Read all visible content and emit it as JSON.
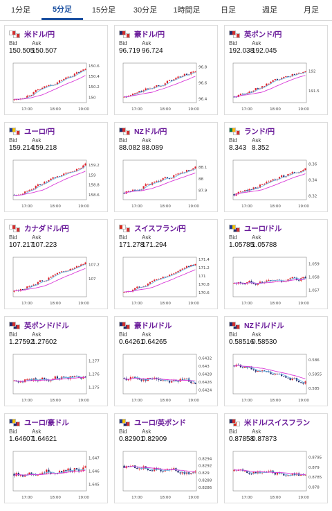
{
  "tabs": [
    {
      "label": "1分足",
      "active": false
    },
    {
      "label": "5分足",
      "active": true
    },
    {
      "label": "15分足",
      "active": false
    },
    {
      "label": "30分足",
      "active": false
    },
    {
      "label": "1時間足",
      "active": false
    },
    {
      "label": "日足",
      "active": false
    },
    {
      "label": "週足",
      "active": false
    },
    {
      "label": "月足",
      "active": false
    }
  ],
  "quote_labels": {
    "bid": "Bid",
    "ask": "Ask"
  },
  "x_ticks": [
    "17:00",
    "18:00",
    "19:00"
  ],
  "colors": {
    "up": "#e0202a",
    "down": "#1f2b6e",
    "ma_short": "#6fb8e6",
    "ma_long": "#d83ad8",
    "accent": "#6a1b9a",
    "tab_active": "#1a4fa0"
  },
  "pairs": [
    {
      "name": "米ドル/円",
      "bid": "150.505",
      "ask": "150.507",
      "flags": [
        [
          "#ffffff",
          "#d22f2f"
        ],
        [
          "#ffffff",
          "#d22f2f"
        ]
      ],
      "chart_data": {
        "type": "candlestick",
        "y_ticks": [
          "150.6",
          "150.4",
          "150.2",
          "150"
        ],
        "ylim": [
          149.9,
          150.65
        ],
        "trend": [
          149.95,
          150.55
        ],
        "vol": 0.05
      }
    },
    {
      "name": "豪ドル/円",
      "bid": "96.719",
      "ask": "96.724",
      "flags": [
        [
          "#1f2b6e",
          "#d22f2f"
        ],
        [
          "#ffffff",
          "#d22f2f"
        ]
      ],
      "chart_data": {
        "type": "candlestick",
        "y_ticks": [
          "96.8",
          "96.6",
          "96.4"
        ],
        "ylim": [
          96.35,
          96.85
        ],
        "trend": [
          96.42,
          96.76
        ],
        "vol": 0.035
      }
    },
    {
      "name": "英ポンド/円",
      "bid": "192.038",
      "ask": "192.045",
      "flags": [
        [
          "#1f2b6e",
          "#d22f2f"
        ],
        [
          "#ffffff",
          "#d22f2f"
        ]
      ],
      "chart_data": {
        "type": "candlestick",
        "y_ticks": [
          "192",
          "191.5"
        ],
        "ylim": [
          191.2,
          192.2
        ],
        "trend": [
          191.35,
          192.06
        ],
        "vol": 0.07
      }
    },
    {
      "name": "ユーロ/円",
      "bid": "159.214",
      "ask": "159.218",
      "flags": [
        [
          "#1f3a93",
          "#f3c300"
        ],
        [
          "#ffffff",
          "#d22f2f"
        ]
      ],
      "chart_data": {
        "type": "candlestick",
        "y_ticks": [
          "159.2",
          "159",
          "158.8",
          "158.6"
        ],
        "ylim": [
          158.5,
          159.3
        ],
        "trend": [
          158.6,
          159.22
        ],
        "vol": 0.05
      }
    },
    {
      "name": "NZドル/円",
      "bid": "88.082",
      "ask": "88.089",
      "flags": [
        [
          "#1f2b6e",
          "#d22f2f"
        ],
        [
          "#ffffff",
          "#d22f2f"
        ]
      ],
      "chart_data": {
        "type": "candlestick",
        "y_ticks": [
          "88.1",
          "88",
          "87.9"
        ],
        "ylim": [
          87.82,
          88.16
        ],
        "trend": [
          87.88,
          88.1
        ],
        "vol": 0.025
      }
    },
    {
      "name": "ランド/円",
      "bid": "8.343",
      "ask": "8.352",
      "flags": [
        [
          "#007a4d",
          "#ffb612"
        ],
        [
          "#ffffff",
          "#d22f2f"
        ]
      ],
      "chart_data": {
        "type": "candlestick",
        "y_ticks": [
          "8.36",
          "8.34",
          "8.32"
        ],
        "ylim": [
          8.315,
          8.365
        ],
        "trend": [
          8.322,
          8.355
        ],
        "vol": 0.004
      }
    },
    {
      "name": "カナダドル/円",
      "bid": "107.217",
      "ask": "107.223",
      "flags": [
        [
          "#ffffff",
          "#d22f2f"
        ],
        [
          "#ffffff",
          "#d22f2f"
        ]
      ],
      "chart_data": {
        "type": "candlestick",
        "y_ticks": [
          "107.2",
          "107"
        ],
        "ylim": [
          106.75,
          107.3
        ],
        "trend": [
          106.82,
          107.24
        ],
        "vol": 0.035
      }
    },
    {
      "name": "スイスフラン/円",
      "bid": "171.278",
      "ask": "171.294",
      "flags": [
        [
          "#d52b1e",
          "#ffffff"
        ],
        [
          "#ffffff",
          "#d22f2f"
        ]
      ],
      "chart_data": {
        "type": "candlestick",
        "y_ticks": [
          "171.4",
          "171.2",
          "171",
          "170.8",
          "170.6"
        ],
        "ylim": [
          170.5,
          171.45
        ],
        "trend": [
          170.6,
          171.32
        ],
        "vol": 0.06
      }
    },
    {
      "name": "ユーロ/ドル",
      "bid": "1.05785",
      "ask": "1.05788",
      "flags": [
        [
          "#1f3a93",
          "#f3c300"
        ],
        [
          "#1f2b6e",
          "#d22f2f"
        ]
      ],
      "chart_data": {
        "type": "candlestick",
        "y_ticks": [
          "1.059",
          "1.058",
          "1.057"
        ],
        "ylim": [
          1.0565,
          1.0595
        ],
        "trend": [
          1.0575,
          1.0579
        ],
        "vol": 0.0003
      }
    },
    {
      "name": "英ポンド/ドル",
      "bid": "1.27592",
      "ask": "1.27602",
      "flags": [
        [
          "#1f2b6e",
          "#d22f2f"
        ],
        [
          "#1f2b6e",
          "#d22f2f"
        ]
      ],
      "chart_data": {
        "type": "candlestick",
        "y_ticks": [
          "1.277",
          "1.276",
          "1.275"
        ],
        "ylim": [
          1.2745,
          1.2775
        ],
        "trend": [
          1.2755,
          1.2759
        ],
        "vol": 0.0003
      }
    },
    {
      "name": "豪ドル/ドル",
      "bid": "0.64261",
      "ask": "0.64265",
      "flags": [
        [
          "#1f2b6e",
          "#d22f2f"
        ],
        [
          "#1f2b6e",
          "#d22f2f"
        ]
      ],
      "chart_data": {
        "type": "candlestick",
        "y_ticks": [
          "0.6432",
          "0.643",
          "0.6428",
          "0.6426",
          "0.6424"
        ],
        "ylim": [
          0.6423,
          0.6433
        ],
        "trend": [
          0.6427,
          0.64262
        ],
        "vol": 0.00012
      }
    },
    {
      "name": "NZドル/ドル",
      "bid": "0.58516",
      "ask": "0.58530",
      "flags": [
        [
          "#1f2b6e",
          "#d22f2f"
        ],
        [
          "#1f2b6e",
          "#d22f2f"
        ]
      ],
      "chart_data": {
        "type": "candlestick",
        "y_ticks": [
          "0.586",
          "0.5855",
          "0.585"
        ],
        "ylim": [
          0.5848,
          0.5862
        ],
        "trend": [
          0.5858,
          0.5852
        ],
        "vol": 0.00012
      }
    },
    {
      "name": "ユーロ/豪ドル",
      "bid": "1.64607",
      "ask": "1.64621",
      "flags": [
        [
          "#1f3a93",
          "#f3c300"
        ],
        [
          "#1f2b6e",
          "#d22f2f"
        ]
      ],
      "chart_data": {
        "type": "candlestick",
        "y_ticks": [
          "1.647",
          "1.646",
          "1.645"
        ],
        "ylim": [
          1.6445,
          1.6475
        ],
        "trend": [
          1.6458,
          1.6462
        ],
        "vol": 0.0004
      }
    },
    {
      "name": "ユーロ/英ポンド",
      "bid": "0.82901",
      "ask": "0.82909",
      "flags": [
        [
          "#1f3a93",
          "#f3c300"
        ],
        [
          "#1f2b6e",
          "#d22f2f"
        ]
      ],
      "chart_data": {
        "type": "candlestick",
        "y_ticks": [
          "0.8294",
          "0.8292",
          "0.829",
          "0.8288",
          "0.8286"
        ],
        "ylim": [
          0.8285,
          0.8296
        ],
        "trend": [
          0.8292,
          0.829
        ],
        "vol": 0.00012
      }
    },
    {
      "name": "米ドル/スイスフラン",
      "bid": "0.87858",
      "ask": "0.87873",
      "flags": [
        [
          "#1f2b6e",
          "#d22f2f"
        ],
        [
          "#d52b1e",
          "#ffffff"
        ]
      ],
      "chart_data": {
        "type": "candlestick",
        "y_ticks": [
          "0.8795",
          "0.879",
          "0.8785",
          "0.878"
        ],
        "ylim": [
          0.8778,
          0.8798
        ],
        "trend": [
          0.8788,
          0.8786
        ],
        "vol": 0.00018
      }
    }
  ]
}
